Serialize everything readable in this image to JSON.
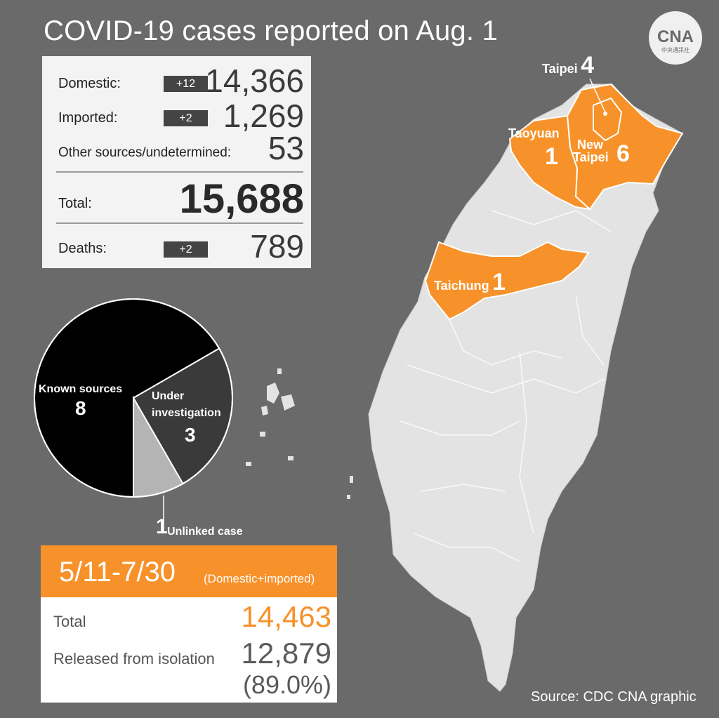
{
  "title": "COVID-19 cases reported on Aug. 1",
  "logo": {
    "text": "CNA",
    "subtext": "中央通訊社",
    "icon": "cna-logo"
  },
  "stats": {
    "domestic": {
      "label": "Domestic:",
      "change": "+12",
      "value": "14,366"
    },
    "imported": {
      "label": "Imported:",
      "change": "+2",
      "value": "1,269"
    },
    "other": {
      "label": "Other sources/undetermined:",
      "value": "53"
    },
    "total": {
      "label": "Total:",
      "value": "15,688"
    },
    "deaths": {
      "label": "Deaths:",
      "change": "+2",
      "value": "789"
    }
  },
  "chart_data": [
    {
      "type": "pie",
      "slices": [
        {
          "label": "Known sources",
          "value": 8,
          "color": "#000000"
        },
        {
          "label": "Under investigation",
          "value": 3,
          "color": "#3a3a3a"
        },
        {
          "label": "Unlinked case",
          "value": 1,
          "color": "#b4b4b4"
        }
      ]
    }
  ],
  "pie_labels": {
    "known_name": "Known sources",
    "known_value": "8",
    "under_name_1": "Under",
    "under_name_2": "investigation",
    "under_value": "3",
    "unlinked_value": "1",
    "unlinked_name": "Unlinked case"
  },
  "map": {
    "base_color": "#e3e3e3",
    "highlight_color": "#f7922a",
    "cities": {
      "taipei": {
        "name": "Taipei",
        "count": "4"
      },
      "taoyuan": {
        "name": "Taoyuan",
        "count": "1"
      },
      "new_taipei": {
        "name_1": "New",
        "name_2": "Taipei",
        "count": "6"
      },
      "taichung": {
        "name": "Taichung",
        "count": "1"
      }
    }
  },
  "period": {
    "range": "5/11-7/30",
    "note": "(Domestic+imported)",
    "total_label": "Total",
    "total_value": "14,463",
    "released_label": "Released from isolation",
    "released_value": "12,879",
    "released_pct": "(89.0%)",
    "accent_color": "#f7912a"
  },
  "source": "Source: CDC  CNA graphic"
}
